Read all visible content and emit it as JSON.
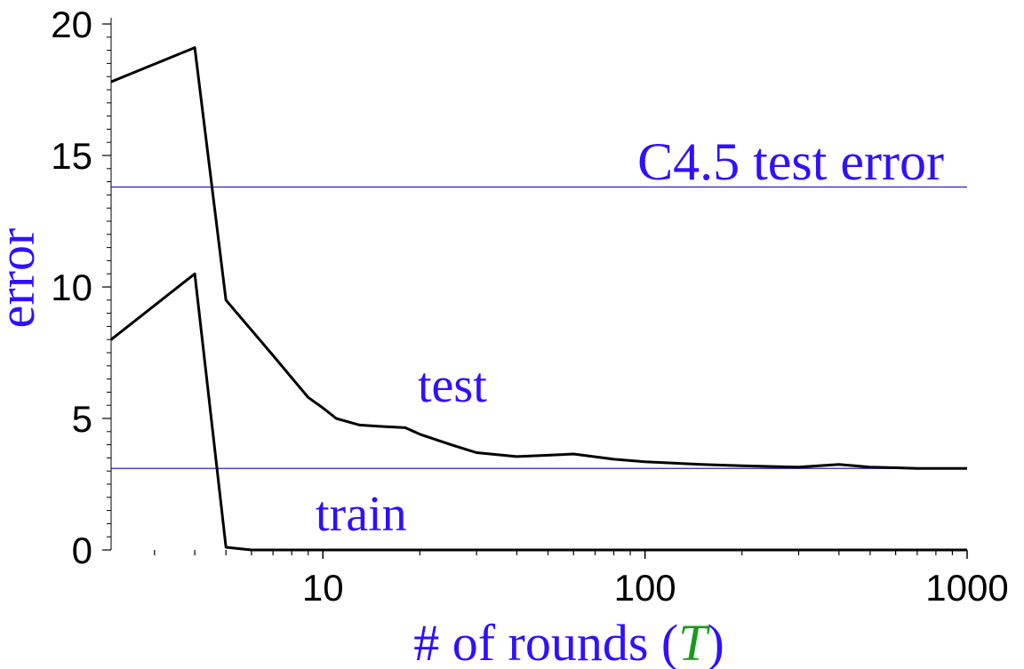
{
  "chart_data": {
    "type": "line",
    "title": "",
    "xlabel_prefix": "# of rounds (",
    "xlabel_var": "T",
    "xlabel_suffix": ")",
    "ylabel": "error",
    "xscale": "log",
    "xlim": [
      2.2,
      1000
    ],
    "ylim": [
      0,
      20
    ],
    "x_ticks": [
      10,
      100,
      1000
    ],
    "x_tick_labels": [
      "10",
      "100",
      "1000"
    ],
    "y_ticks": [
      0,
      5,
      10,
      15,
      20
    ],
    "y_tick_labels": [
      "0",
      "5",
      "10",
      "15",
      "20"
    ],
    "grid": false,
    "colors": {
      "label": "#2f10ff",
      "variable": "#1a9a1a",
      "reference_line": "#2b1fc0",
      "series": "#000000"
    },
    "series": [
      {
        "name": "test",
        "x": [
          2.2,
          4,
          5,
          7,
          9,
          10,
          11,
          13,
          15,
          18,
          20,
          25,
          30,
          40,
          50,
          60,
          80,
          100,
          150,
          200,
          300,
          400,
          500,
          700,
          1000
        ],
        "y": [
          17.8,
          19.1,
          9.5,
          7.4,
          5.8,
          5.4,
          5.0,
          4.75,
          4.7,
          4.65,
          4.4,
          4.0,
          3.7,
          3.55,
          3.6,
          3.65,
          3.45,
          3.35,
          3.25,
          3.2,
          3.15,
          3.25,
          3.15,
          3.1,
          3.1
        ]
      },
      {
        "name": "train",
        "x": [
          2.2,
          4,
          5,
          6,
          10,
          100,
          1000
        ],
        "y": [
          8.0,
          10.5,
          0.1,
          0.0,
          0.0,
          0.0,
          0.0
        ]
      }
    ],
    "reference_lines": [
      {
        "label": "C4.5 test error",
        "y": 13.8
      },
      {
        "label": "",
        "y": 3.1
      }
    ],
    "annotations": [
      {
        "text": "test",
        "series": "test"
      },
      {
        "text": "train",
        "series": "train"
      }
    ]
  }
}
